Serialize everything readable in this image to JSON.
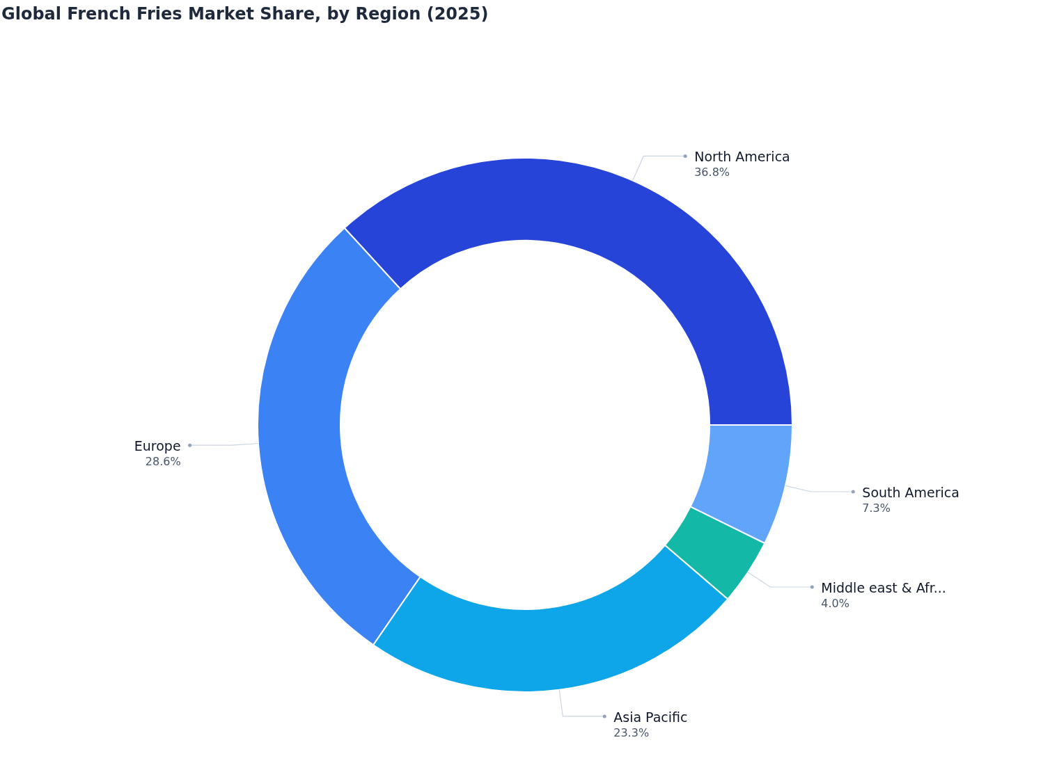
{
  "chart_data": {
    "type": "donut",
    "title": "Global French Fries Market Share, by Region (2025)",
    "categories": [
      "North America",
      "Europe",
      "Asia Pacific",
      "Middle east & Afr...",
      "South America"
    ],
    "values": [
      36.8,
      28.6,
      23.3,
      4.0,
      7.3
    ],
    "value_labels": [
      "36.8%",
      "28.6%",
      "23.3%",
      "4.0%",
      "7.3%"
    ],
    "colors": [
      "#2744d9",
      "#3b82f4",
      "#0ea5e9",
      "#14b8a6",
      "#60a5fa"
    ],
    "legend": false
  }
}
